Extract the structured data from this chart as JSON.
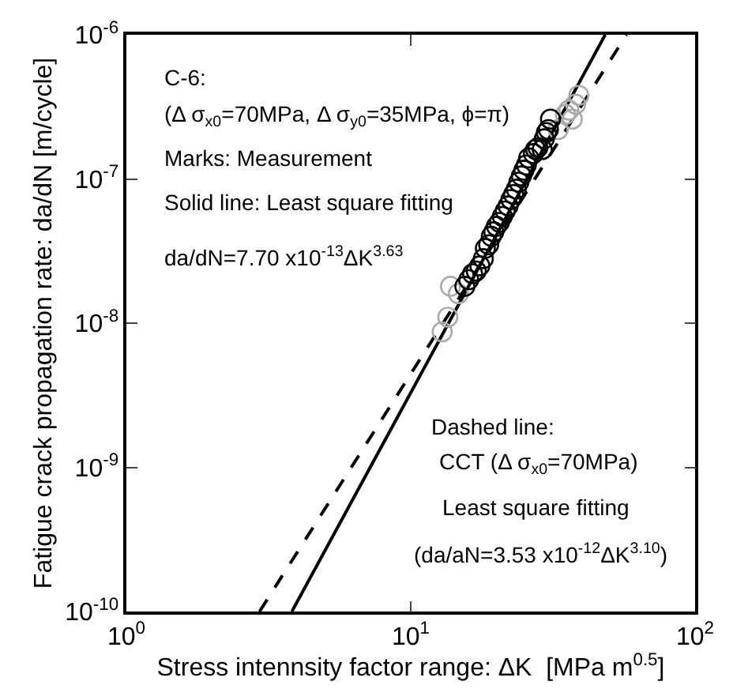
{
  "chart_data": {
    "type": "scatter",
    "xlabel": "Stress intennsity factor range: ΔK  [MPa m$^{0.5}$]",
    "ylabel": "Fatigue crack propagation rate: da/dN [m/cycle]",
    "log": "xy",
    "xlim": [
      1,
      100
    ],
    "ylim": [
      1e-10,
      1e-06
    ],
    "xticks": [
      {
        "value": 1,
        "label": "10$^{0}$"
      },
      {
        "value": 10,
        "label": "10$^{1}$"
      },
      {
        "value": 100,
        "label": "10$^{2}$"
      }
    ],
    "yticks": [
      {
        "value": 1e-10,
        "label": "10$^{-10}$"
      },
      {
        "value": 1e-09,
        "label": "10$^{-9}$"
      },
      {
        "value": 1e-08,
        "label": "10$^{-8}$"
      },
      {
        "value": 1e-07,
        "label": "10$^{-7}$"
      },
      {
        "value": 1e-06,
        "label": "10$^{-6}$"
      }
    ],
    "grid": false,
    "series": [
      {
        "type": "line",
        "line_style": "dashed",
        "color": "#000000",
        "x": [
          2.94,
          57.4
        ],
        "values": [
          1e-10,
          1e-06
        ]
      },
      {
        "type": "line",
        "line_style": "solid",
        "color": "#000000",
        "x": [
          3.82,
          48.3
        ],
        "values": [
          1e-10,
          1e-06
        ]
      },
      {
        "marker": "circle",
        "color": "#aaaaaa",
        "x": [
          12.9,
          13.5,
          13.8,
          14.7,
          33,
          35,
          36,
          37,
          38,
          39
        ],
        "values": [
          8.7e-09,
          1.1e-08,
          1.8e-08,
          1.6e-08,
          2.2e-07,
          2.8e-07,
          3e-07,
          2.6e-07,
          3.3e-07,
          3.8e-07
        ]
      },
      {
        "marker": "circle",
        "color": "#000000",
        "x": [
          15.5,
          16,
          16.5,
          17,
          17.5,
          18,
          18.3,
          18.8,
          19.2,
          19.6,
          20,
          20.5,
          21,
          21.5,
          22,
          22.5,
          23,
          23.5,
          24,
          24.5,
          25,
          25.5,
          26,
          27,
          27.5,
          28,
          29,
          29.5,
          30,
          30.5,
          31
        ],
        "values": [
          1.8e-08,
          2e-08,
          2.2e-08,
          2.3e-08,
          2.5e-08,
          2.8e-08,
          3.3e-08,
          3.5e-08,
          4e-08,
          4.3e-08,
          4.7e-08,
          5e-08,
          5.5e-08,
          6e-08,
          6.5e-08,
          7.2e-08,
          7.8e-08,
          8.5e-08,
          9.5e-08,
          1.05e-07,
          1.15e-07,
          1.25e-07,
          1.4e-07,
          1.5e-07,
          1.6e-07,
          1.65e-07,
          1.6e-07,
          1.9e-07,
          2.1e-07,
          2.2e-07,
          2.6e-07
        ]
      }
    ],
    "annotations": [
      "C-6:",
      "(Δ σ$_{x0}$=70MPa, Δ σ$_{y0}$=35MPa, ϕ=π)",
      "Marks: Measurement",
      "Solid line: Least square fitting",
      "da/dN=7.70 x10$^{-13}$ΔK$^{3.63}$",
      "Dashed line:",
      "CCT (Δ σ$_{x0}$=70MPa)",
      "Least square fitting",
      "(da/aN=3.53 x10$^{-12}$ΔK$^{3.10}$)"
    ]
  }
}
